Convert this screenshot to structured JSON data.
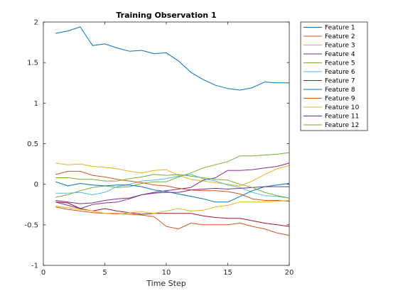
{
  "chart_data": {
    "type": "line",
    "title": "Training Observation 1",
    "xlabel": "Time Step",
    "ylabel": "",
    "xlim": [
      0,
      20
    ],
    "ylim": [
      -1,
      2
    ],
    "xticks": [
      0,
      5,
      10,
      15,
      20
    ],
    "yticks": [
      -1,
      -0.5,
      0,
      0.5,
      1,
      1.5,
      2
    ],
    "grid": false,
    "legend_position": "outside-top-right",
    "x": [
      1,
      2,
      3,
      4,
      5,
      6,
      7,
      8,
      9,
      10,
      11,
      12,
      13,
      14,
      15,
      16,
      17,
      18,
      19,
      20
    ],
    "series": [
      {
        "name": "Feature 1",
        "color": "#0072BD",
        "values": [
          1.86,
          1.89,
          1.94,
          1.71,
          1.73,
          1.68,
          1.64,
          1.65,
          1.61,
          1.62,
          1.52,
          1.38,
          1.29,
          1.22,
          1.18,
          1.16,
          1.19,
          1.26,
          1.25,
          1.25
        ]
      },
      {
        "name": "Feature 2",
        "color": "#D95319",
        "values": [
          -0.28,
          -0.31,
          -0.33,
          -0.35,
          -0.36,
          -0.36,
          -0.37,
          -0.38,
          -0.4,
          -0.52,
          -0.55,
          -0.48,
          -0.5,
          -0.5,
          -0.5,
          -0.48,
          -0.52,
          -0.55,
          -0.6,
          -0.63
        ]
      },
      {
        "name": "Feature 3",
        "color": "#EDB120",
        "values": [
          0.26,
          0.24,
          0.25,
          0.22,
          0.21,
          0.19,
          0.16,
          0.14,
          0.17,
          0.18,
          0.11,
          0.06,
          0.04,
          0.02,
          0.0,
          -0.02,
          0.04,
          0.12,
          0.19,
          0.23
        ]
      },
      {
        "name": "Feature 4",
        "color": "#7E2F8E",
        "values": [
          -0.22,
          -0.26,
          -0.3,
          -0.25,
          -0.23,
          -0.22,
          -0.18,
          -0.13,
          -0.1,
          -0.08,
          -0.06,
          -0.04,
          0.05,
          0.08,
          0.17,
          0.17,
          0.18,
          0.2,
          0.22,
          0.26
        ]
      },
      {
        "name": "Feature 5",
        "color": "#77AC30",
        "values": [
          -0.16,
          -0.13,
          -0.08,
          -0.04,
          -0.02,
          -0.04,
          -0.03,
          0.01,
          0.03,
          0.03,
          0.09,
          0.14,
          0.2,
          0.24,
          0.28,
          0.35,
          0.35,
          0.36,
          0.37,
          0.39
        ]
      },
      {
        "name": "Feature 6",
        "color": "#4DBEEE",
        "values": [
          -0.11,
          -0.11,
          -0.1,
          -0.13,
          -0.1,
          -0.03,
          0.0,
          0.04,
          0.05,
          0.07,
          0.1,
          0.12,
          0.07,
          0.04,
          -0.01,
          -0.04,
          -0.1,
          -0.14,
          -0.15,
          -0.17
        ]
      },
      {
        "name": "Feature 7",
        "color": "#A2142F",
        "values": [
          -0.22,
          -0.23,
          -0.3,
          -0.33,
          -0.3,
          -0.33,
          -0.35,
          -0.37,
          -0.36,
          -0.36,
          -0.36,
          -0.36,
          -0.39,
          -0.41,
          -0.42,
          -0.42,
          -0.45,
          -0.48,
          -0.5,
          -0.52
        ]
      },
      {
        "name": "Feature 8",
        "color": "#0072BD",
        "values": [
          0.03,
          -0.02,
          0.01,
          -0.01,
          -0.02,
          -0.01,
          -0.01,
          -0.03,
          -0.07,
          -0.09,
          -0.12,
          -0.15,
          -0.18,
          -0.22,
          -0.22,
          -0.15,
          -0.08,
          -0.03,
          -0.01,
          0.01
        ]
      },
      {
        "name": "Feature 9",
        "color": "#D95319",
        "values": [
          0.12,
          0.16,
          0.16,
          0.11,
          0.09,
          0.06,
          0.04,
          0.02,
          -0.01,
          -0.02,
          -0.05,
          -0.07,
          -0.08,
          -0.08,
          -0.09,
          -0.12,
          -0.18,
          -0.2,
          -0.2,
          -0.21
        ]
      },
      {
        "name": "Feature 10",
        "color": "#EDB120",
        "values": [
          -0.27,
          -0.29,
          -0.31,
          -0.33,
          -0.36,
          -0.37,
          -0.35,
          -0.34,
          -0.36,
          -0.33,
          -0.3,
          -0.33,
          -0.32,
          -0.28,
          -0.26,
          -0.22,
          -0.22,
          -0.22,
          -0.21,
          -0.2
        ]
      },
      {
        "name": "Feature 11",
        "color": "#7E2F8E",
        "values": [
          -0.2,
          -0.22,
          -0.24,
          -0.23,
          -0.2,
          -0.18,
          -0.17,
          -0.13,
          -0.11,
          -0.1,
          -0.1,
          -0.07,
          -0.06,
          -0.05,
          -0.06,
          -0.05,
          -0.04,
          -0.03,
          -0.03,
          -0.03
        ]
      },
      {
        "name": "Feature 12",
        "color": "#77AC30",
        "values": [
          0.08,
          0.08,
          0.06,
          0.06,
          0.04,
          0.04,
          0.07,
          0.09,
          0.12,
          0.11,
          0.12,
          0.1,
          0.08,
          0.06,
          0.05,
          0.0,
          -0.04,
          -0.1,
          -0.14,
          -0.17
        ]
      }
    ]
  }
}
